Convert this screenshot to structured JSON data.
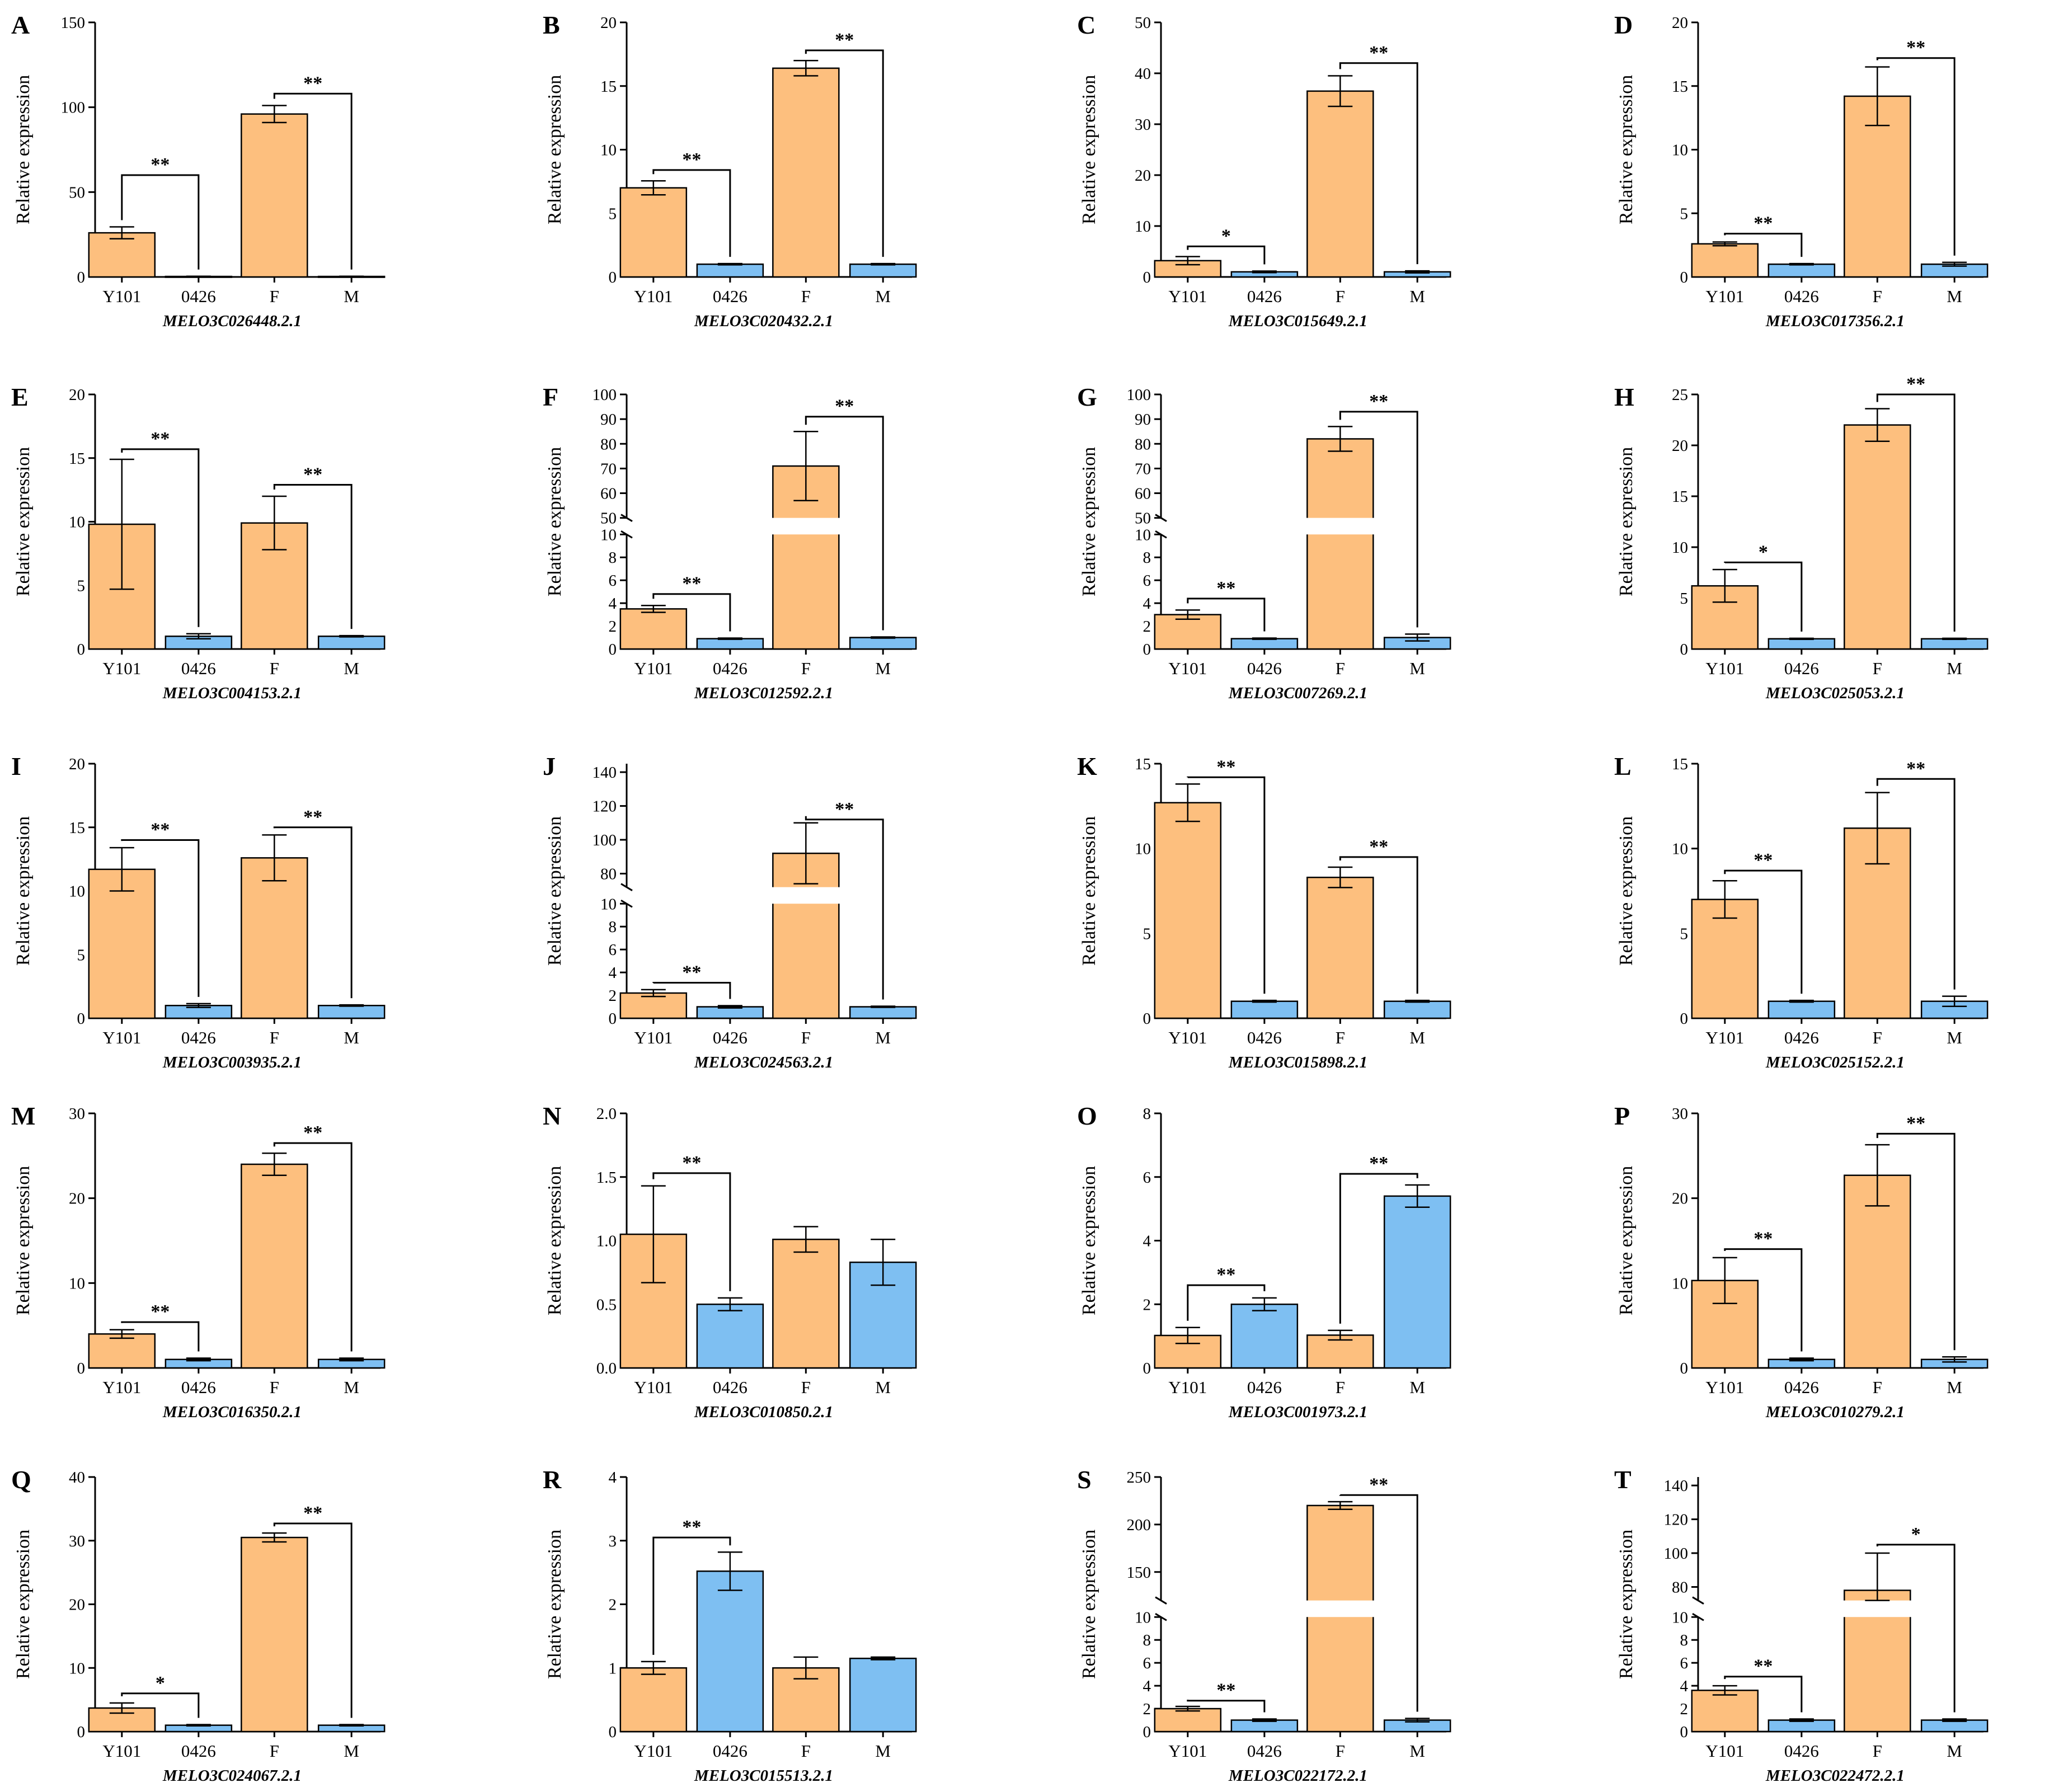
{
  "figure": {
    "colors": {
      "orange": "#FDBF7E",
      "blue": "#7EBFF2",
      "ink": "#000000",
      "white": "#ffffff"
    },
    "ylabel": "Relative expression",
    "categories": [
      "Y101",
      "0426",
      "F",
      "M"
    ],
    "bar_color_keys": [
      "orange",
      "blue",
      "orange",
      "blue"
    ]
  },
  "chart_data": [
    {
      "panel": "A",
      "type": "bar",
      "gene": "MELO3C026448.2.1",
      "categories": [
        "Y101",
        "0426",
        "F",
        "M"
      ],
      "values": [
        26,
        0.3,
        96,
        0.3
      ],
      "errors": [
        3.5,
        0.1,
        5,
        0.1
      ],
      "ylabel": "Relative expression",
      "yticks": [
        0,
        50,
        100,
        150
      ],
      "yticks_text": [
        "0",
        "50",
        "100",
        "150"
      ],
      "ylim": [
        0,
        150
      ],
      "significance": [
        {
          "from": 0,
          "to": 1,
          "label": "**",
          "at": 60
        },
        {
          "from": 2,
          "to": 3,
          "label": "**",
          "at": 108
        }
      ]
    },
    {
      "panel": "B",
      "type": "bar",
      "gene": "MELO3C020432.2.1",
      "categories": [
        "Y101",
        "0426",
        "F",
        "M"
      ],
      "values": [
        7,
        1,
        16.4,
        1
      ],
      "errors": [
        0.55,
        0.05,
        0.6,
        0.05
      ],
      "ylabel": "Relative expression",
      "yticks": [
        0,
        5,
        10,
        15,
        20
      ],
      "yticks_text": [
        "0",
        "5",
        "10",
        "15",
        "20"
      ],
      "ylim": [
        0,
        20
      ],
      "significance": [
        {
          "from": 0,
          "to": 1,
          "label": "**",
          "at": 8.4
        },
        {
          "from": 2,
          "to": 3,
          "label": "**",
          "at": 17.8
        }
      ]
    },
    {
      "panel": "C",
      "type": "bar",
      "gene": "MELO3C015649.2.1",
      "categories": [
        "Y101",
        "0426",
        "F",
        "M"
      ],
      "values": [
        3.2,
        1,
        36.5,
        1
      ],
      "errors": [
        0.8,
        0.15,
        3,
        0.2
      ],
      "ylabel": "Relative expression",
      "yticks": [
        0,
        10,
        20,
        30,
        40,
        50
      ],
      "yticks_text": [
        "0",
        "10",
        "20",
        "30",
        "40",
        "50"
      ],
      "ylim": [
        0,
        50
      ],
      "significance": [
        {
          "from": 0,
          "to": 1,
          "label": "*",
          "at": 6
        },
        {
          "from": 2,
          "to": 3,
          "label": "**",
          "at": 42
        }
      ]
    },
    {
      "panel": "D",
      "type": "bar",
      "gene": "MELO3C017356.2.1",
      "categories": [
        "Y101",
        "0426",
        "F",
        "M"
      ],
      "values": [
        2.6,
        1,
        14.2,
        1
      ],
      "errors": [
        0.15,
        0.05,
        2.3,
        0.15
      ],
      "ylabel": "Relative expression",
      "yticks": [
        0,
        5,
        10,
        15,
        20
      ],
      "yticks_text": [
        "0",
        "5",
        "10",
        "15",
        "20"
      ],
      "ylim": [
        0,
        20
      ],
      "significance": [
        {
          "from": 0,
          "to": 1,
          "label": "**",
          "at": 3.4
        },
        {
          "from": 2,
          "to": 3,
          "label": "**",
          "at": 17.2
        }
      ]
    },
    {
      "panel": "E",
      "type": "bar",
      "gene": "MELO3C004153.2.1",
      "categories": [
        "Y101",
        "0426",
        "F",
        "M"
      ],
      "values": [
        9.8,
        1,
        9.9,
        1
      ],
      "errors": [
        5.1,
        0.2,
        2.1,
        0.05
      ],
      "ylabel": "Relative expression",
      "yticks": [
        0,
        5,
        10,
        15,
        20
      ],
      "yticks_text": [
        "0",
        "5",
        "10",
        "15",
        "20"
      ],
      "ylim": [
        0,
        20
      ],
      "significance": [
        {
          "from": 0,
          "to": 1,
          "label": "**",
          "at": 15.7
        },
        {
          "from": 2,
          "to": 3,
          "label": "**",
          "at": 12.9
        }
      ]
    },
    {
      "panel": "F",
      "type": "bar",
      "gene": "MELO3C012592.2.1",
      "categories": [
        "Y101",
        "0426",
        "F",
        "M"
      ],
      "values": [
        3.5,
        0.9,
        71,
        1
      ],
      "errors": [
        0.3,
        0.05,
        14,
        0.05
      ],
      "ylabel": "Relative expression",
      "broken": {
        "low_max": 10,
        "high_min": 50,
        "high_max": 100,
        "low_ticks": [
          0,
          2,
          4,
          6,
          8,
          10
        ],
        "high_ticks": [
          50,
          60,
          70,
          80,
          90,
          100
        ]
      },
      "yticks_text": [
        "0",
        "2",
        "4",
        "6",
        "8",
        "10",
        "50",
        "60",
        "70",
        "80",
        "90",
        "100"
      ],
      "significance": [
        {
          "from": 0,
          "to": 1,
          "label": "**",
          "at": 4.8
        },
        {
          "from": 2,
          "to": 3,
          "label": "**",
          "at": 91
        }
      ]
    },
    {
      "panel": "G",
      "type": "bar",
      "gene": "MELO3C007269.2.1",
      "categories": [
        "Y101",
        "0426",
        "F",
        "M"
      ],
      "values": [
        3,
        0.9,
        82,
        1
      ],
      "errors": [
        0.4,
        0.05,
        5,
        0.3
      ],
      "ylabel": "Relative expression",
      "broken": {
        "low_max": 10,
        "high_min": 50,
        "high_max": 100,
        "low_ticks": [
          0,
          2,
          4,
          6,
          8,
          10
        ],
        "high_ticks": [
          50,
          60,
          70,
          80,
          90,
          100
        ]
      },
      "yticks_text": [
        "0",
        "2",
        "4",
        "6",
        "8",
        "10",
        "50",
        "60",
        "70",
        "80",
        "90",
        "100"
      ],
      "significance": [
        {
          "from": 0,
          "to": 1,
          "label": "**",
          "at": 4.4
        },
        {
          "from": 2,
          "to": 3,
          "label": "**",
          "at": 93
        }
      ]
    },
    {
      "panel": "H",
      "type": "bar",
      "gene": "MELO3C025053.2.1",
      "categories": [
        "Y101",
        "0426",
        "F",
        "M"
      ],
      "values": [
        6.2,
        1,
        22,
        1
      ],
      "errors": [
        1.6,
        0.05,
        1.6,
        0.05
      ],
      "ylabel": "Relative expression",
      "yticks": [
        0,
        5,
        10,
        15,
        20,
        25
      ],
      "yticks_text": [
        "0",
        "5",
        "10",
        "15",
        "20",
        "25"
      ],
      "ylim": [
        0,
        25
      ],
      "significance": [
        {
          "from": 0,
          "to": 1,
          "label": "*",
          "at": 8.5
        },
        {
          "from": 2,
          "to": 3,
          "label": "**",
          "at": 25
        }
      ]
    },
    {
      "panel": "I",
      "type": "bar",
      "gene": "MELO3C003935.2.1",
      "categories": [
        "Y101",
        "0426",
        "F",
        "M"
      ],
      "values": [
        11.7,
        1,
        12.6,
        1
      ],
      "errors": [
        1.7,
        0.15,
        1.8,
        0.05
      ],
      "ylabel": "Relative expression",
      "yticks": [
        0,
        5,
        10,
        15,
        20
      ],
      "yticks_text": [
        "0",
        "5",
        "10",
        "15",
        "20"
      ],
      "ylim": [
        0,
        20
      ],
      "significance": [
        {
          "from": 0,
          "to": 1,
          "label": "**",
          "at": 14
        },
        {
          "from": 2,
          "to": 3,
          "label": "**",
          "at": 15
        }
      ]
    },
    {
      "panel": "J",
      "type": "bar",
      "gene": "MELO3C024563.2.1",
      "categories": [
        "Y101",
        "0426",
        "F",
        "M"
      ],
      "values": [
        2.2,
        1,
        92,
        1
      ],
      "errors": [
        0.3,
        0.1,
        18,
        0.05
      ],
      "ylabel": "Relative expression",
      "broken": {
        "low_max": 10,
        "high_min": 72,
        "high_max": 145,
        "low_ticks": [
          0,
          2,
          4,
          6,
          8,
          10
        ],
        "high_ticks": [
          80,
          100,
          120,
          140
        ]
      },
      "yticks_text": [
        "0",
        "2",
        "4",
        "6",
        "8",
        "10",
        "80",
        "100",
        "120",
        "140"
      ],
      "significance": [
        {
          "from": 0,
          "to": 1,
          "label": "**",
          "at": 3.1
        },
        {
          "from": 2,
          "to": 3,
          "label": "**",
          "at": 112
        }
      ]
    },
    {
      "panel": "K",
      "type": "bar",
      "gene": "MELO3C015898.2.1",
      "categories": [
        "Y101",
        "0426",
        "F",
        "M"
      ],
      "values": [
        12.7,
        1,
        8.3,
        1
      ],
      "errors": [
        1.1,
        0.05,
        0.6,
        0.05
      ],
      "ylabel": "Relative expression",
      "yticks": [
        0,
        5,
        10,
        15
      ],
      "yticks_text": [
        "0",
        "5",
        "10",
        "15"
      ],
      "ylim": [
        0,
        15
      ],
      "significance": [
        {
          "from": 0,
          "to": 1,
          "label": "**",
          "at": 14.2
        },
        {
          "from": 2,
          "to": 3,
          "label": "**",
          "at": 9.5
        }
      ]
    },
    {
      "panel": "L",
      "type": "bar",
      "gene": "MELO3C025152.2.1",
      "categories": [
        "Y101",
        "0426",
        "F",
        "M"
      ],
      "values": [
        7,
        1,
        11.2,
        1
      ],
      "errors": [
        1.1,
        0.05,
        2.1,
        0.3
      ],
      "ylabel": "Relative expression",
      "yticks": [
        0,
        5,
        10,
        15
      ],
      "yticks_text": [
        "0",
        "5",
        "10",
        "15"
      ],
      "ylim": [
        0,
        15
      ],
      "significance": [
        {
          "from": 0,
          "to": 1,
          "label": "**",
          "at": 8.7
        },
        {
          "from": 2,
          "to": 3,
          "label": "**",
          "at": 14.1
        }
      ]
    },
    {
      "panel": "M",
      "type": "bar",
      "gene": "MELO3C016350.2.1",
      "categories": [
        "Y101",
        "0426",
        "F",
        "M"
      ],
      "values": [
        4,
        1,
        24,
        1
      ],
      "errors": [
        0.5,
        0.15,
        1.3,
        0.15
      ],
      "ylabel": "Relative expression",
      "yticks": [
        0,
        10,
        20,
        30
      ],
      "yticks_text": [
        "0",
        "10",
        "20",
        "30"
      ],
      "ylim": [
        0,
        30
      ],
      "significance": [
        {
          "from": 0,
          "to": 1,
          "label": "**",
          "at": 5.4
        },
        {
          "from": 2,
          "to": 3,
          "label": "**",
          "at": 26.5
        }
      ]
    },
    {
      "panel": "N",
      "type": "bar",
      "gene": "MELO3C010850.2.1",
      "categories": [
        "Y101",
        "0426",
        "F",
        "M"
      ],
      "values": [
        1.05,
        0.5,
        1.01,
        0.83
      ],
      "errors": [
        0.38,
        0.05,
        0.1,
        0.18
      ],
      "ylabel": "Relative expression",
      "yticks": [
        0,
        0.5,
        1,
        1.5,
        2
      ],
      "yticks_text": [
        "0.0",
        "0.5",
        "1.0",
        "1.5",
        "2.0"
      ],
      "ylim": [
        0,
        2
      ],
      "significance": [
        {
          "from": 0,
          "to": 1,
          "label": "**",
          "at": 1.53
        }
      ]
    },
    {
      "panel": "O",
      "type": "bar",
      "gene": "MELO3C001973.2.1",
      "categories": [
        "Y101",
        "0426",
        "F",
        "M"
      ],
      "values": [
        1.02,
        2,
        1.03,
        5.4
      ],
      "errors": [
        0.25,
        0.2,
        0.15,
        0.35
      ],
      "ylabel": "Relative expression",
      "yticks": [
        0,
        2,
        4,
        6,
        8
      ],
      "yticks_text": [
        "0",
        "2",
        "4",
        "6",
        "8"
      ],
      "ylim": [
        0,
        8
      ],
      "significance": [
        {
          "from": 0,
          "to": 1,
          "label": "**",
          "at": 2.6
        },
        {
          "from": 2,
          "to": 3,
          "label": "**",
          "at": 6.1
        }
      ]
    },
    {
      "panel": "P",
      "type": "bar",
      "gene": "MELO3C010279.2.1",
      "categories": [
        "Y101",
        "0426",
        "F",
        "M"
      ],
      "values": [
        10.3,
        1,
        22.7,
        1
      ],
      "errors": [
        2.7,
        0.15,
        3.6,
        0.3
      ],
      "ylabel": "Relative expression",
      "yticks": [
        0,
        10,
        20,
        30
      ],
      "yticks_text": [
        "0",
        "10",
        "20",
        "30"
      ],
      "ylim": [
        0,
        30
      ],
      "significance": [
        {
          "from": 0,
          "to": 1,
          "label": "**",
          "at": 14
        },
        {
          "from": 2,
          "to": 3,
          "label": "**",
          "at": 27.6
        }
      ]
    },
    {
      "panel": "Q",
      "type": "bar",
      "gene": "MELO3C024067.2.1",
      "categories": [
        "Y101",
        "0426",
        "F",
        "M"
      ],
      "values": [
        3.7,
        1,
        30.5,
        1
      ],
      "errors": [
        0.8,
        0.1,
        0.7,
        0.1
      ],
      "ylabel": "Relative expression",
      "yticks": [
        0,
        10,
        20,
        30,
        40
      ],
      "yticks_text": [
        "0",
        "10",
        "20",
        "30",
        "40"
      ],
      "ylim": [
        0,
        40
      ],
      "significance": [
        {
          "from": 0,
          "to": 1,
          "label": "*",
          "at": 6
        },
        {
          "from": 2,
          "to": 3,
          "label": "**",
          "at": 32.7
        }
      ]
    },
    {
      "panel": "R",
      "type": "bar",
      "gene": "MELO3C015513.2.1",
      "categories": [
        "Y101",
        "0426",
        "F",
        "M"
      ],
      "values": [
        1,
        2.52,
        1,
        1.15
      ],
      "errors": [
        0.1,
        0.3,
        0.17,
        0.02
      ],
      "ylabel": "Relative expression",
      "yticks": [
        0,
        1,
        2,
        3,
        4
      ],
      "yticks_text": [
        "0",
        "1",
        "2",
        "3",
        "4"
      ],
      "ylim": [
        0,
        4
      ],
      "significance": [
        {
          "from": 0,
          "to": 1,
          "label": "**",
          "at": 3.05
        }
      ]
    },
    {
      "panel": "S",
      "type": "bar",
      "gene": "MELO3C022172.2.1",
      "categories": [
        "Y101",
        "0426",
        "F",
        "M"
      ],
      "values": [
        2,
        1,
        220,
        1
      ],
      "errors": [
        0.2,
        0.1,
        4,
        0.15
      ],
      "ylabel": "Relative expression",
      "broken": {
        "low_max": 10,
        "high_min": 120,
        "high_max": 250,
        "low_ticks": [
          0,
          2,
          4,
          6,
          8,
          10
        ],
        "high_ticks": [
          150,
          200,
          250
        ]
      },
      "yticks_text": [
        "0",
        "2",
        "4",
        "6",
        "8",
        "10",
        "150",
        "200",
        "250"
      ],
      "significance": [
        {
          "from": 0,
          "to": 1,
          "label": "**",
          "at": 2.7
        },
        {
          "from": 2,
          "to": 3,
          "label": "**",
          "at": 231
        }
      ]
    },
    {
      "panel": "T",
      "type": "bar",
      "gene": "MELO3C022472.2.1",
      "categories": [
        "Y101",
        "0426",
        "F",
        "M"
      ],
      "values": [
        3.6,
        1,
        78,
        1
      ],
      "errors": [
        0.4,
        0.1,
        22,
        0.1
      ],
      "ylabel": "Relative expression",
      "broken": {
        "low_max": 10,
        "high_min": 72,
        "high_max": 145,
        "low_ticks": [
          0,
          2,
          4,
          6,
          8,
          10
        ],
        "high_ticks": [
          80,
          100,
          120,
          140
        ]
      },
      "yticks_text": [
        "0",
        "2",
        "4",
        "6",
        "8",
        "10",
        "80",
        "100",
        "120",
        "140"
      ],
      "significance": [
        {
          "from": 0,
          "to": 1,
          "label": "**",
          "at": 4.8
        },
        {
          "from": 2,
          "to": 3,
          "label": "*",
          "at": 105
        }
      ]
    }
  ]
}
